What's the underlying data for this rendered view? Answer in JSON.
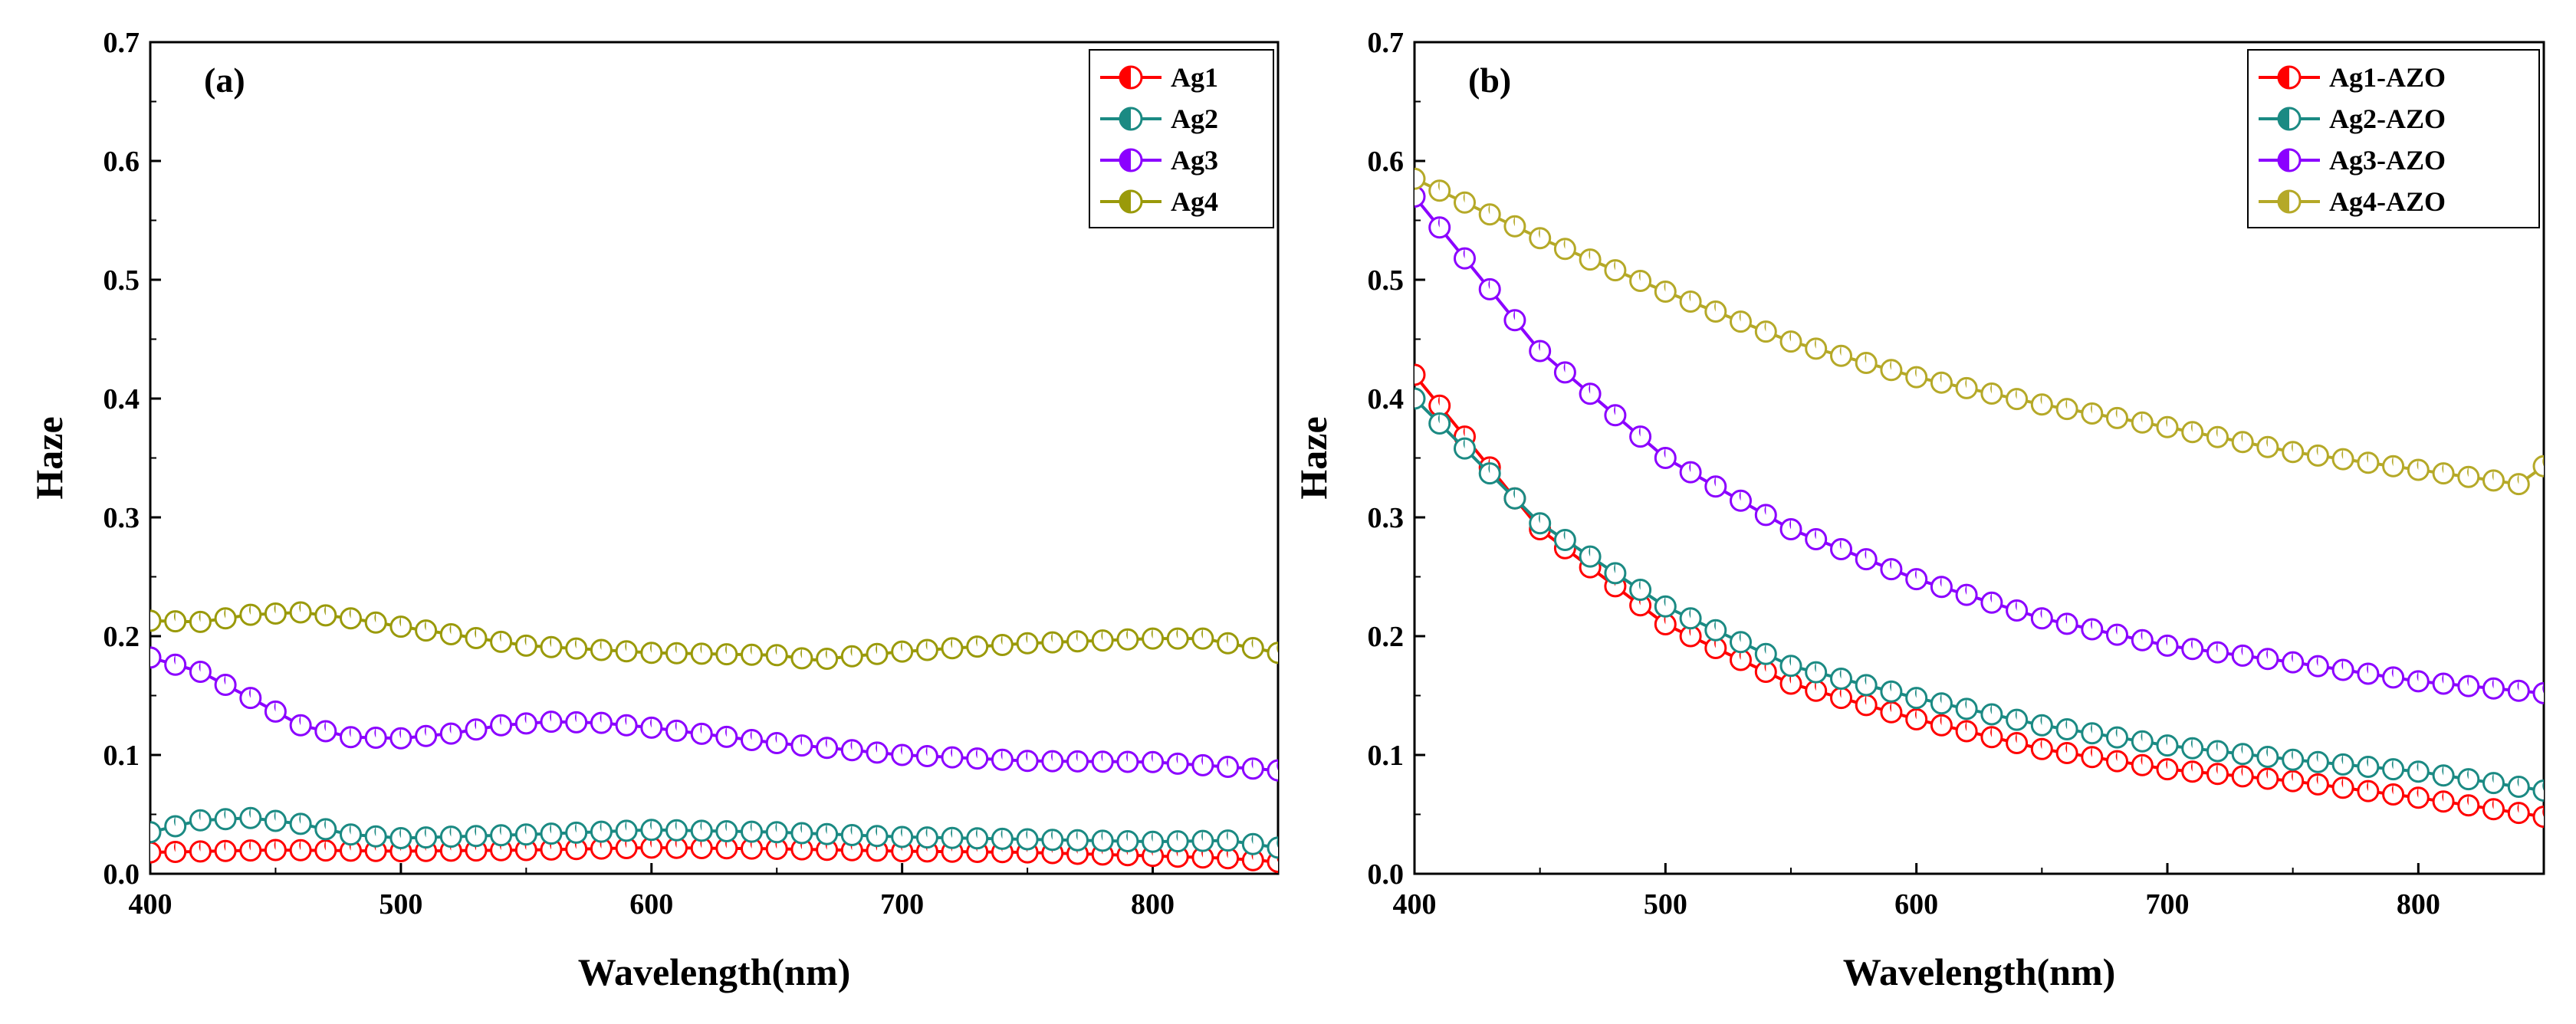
{
  "chart_data": [
    {
      "type": "line",
      "panel_label": "(a)",
      "xlabel": "Wavelength(nm)",
      "ylabel": "Haze",
      "xlim": [
        400,
        850
      ],
      "ylim": [
        0.0,
        0.7
      ],
      "x_ticks": [
        400,
        500,
        600,
        700,
        800
      ],
      "y_ticks": [
        "0.0",
        "0.1",
        "0.2",
        "0.3",
        "0.4",
        "0.5",
        "0.6",
        "0.7"
      ],
      "legend_position": "top-right",
      "series": [
        {
          "name": "Ag1",
          "color": "#ff0000",
          "x": [
            400,
            450,
            500,
            550,
            600,
            650,
            700,
            750,
            800,
            830,
            850
          ],
          "y": [
            0.018,
            0.02,
            0.019,
            0.02,
            0.022,
            0.021,
            0.019,
            0.018,
            0.015,
            0.013,
            0.01
          ]
        },
        {
          "name": "Ag2",
          "color": "#1b8a83",
          "x": [
            400,
            420,
            440,
            460,
            480,
            500,
            550,
            600,
            650,
            700,
            750,
            800,
            830,
            850
          ],
          "y": [
            0.035,
            0.045,
            0.047,
            0.042,
            0.033,
            0.03,
            0.033,
            0.037,
            0.035,
            0.031,
            0.029,
            0.027,
            0.028,
            0.022
          ]
        },
        {
          "name": "Ag3",
          "color": "#8b00ff",
          "x": [
            400,
            420,
            440,
            460,
            480,
            500,
            520,
            540,
            560,
            580,
            600,
            650,
            700,
            750,
            800,
            830,
            850
          ],
          "y": [
            0.182,
            0.17,
            0.148,
            0.125,
            0.115,
            0.114,
            0.118,
            0.125,
            0.128,
            0.127,
            0.123,
            0.11,
            0.1,
            0.095,
            0.094,
            0.09,
            0.087
          ]
        },
        {
          "name": "Ag4",
          "color": "#9a9a0a",
          "x": [
            400,
            420,
            440,
            460,
            480,
            500,
            550,
            600,
            650,
            665,
            700,
            750,
            800,
            820,
            850
          ],
          "y": [
            0.213,
            0.212,
            0.218,
            0.22,
            0.215,
            0.208,
            0.192,
            0.186,
            0.184,
            0.18,
            0.187,
            0.194,
            0.198,
            0.198,
            0.186
          ]
        }
      ]
    },
    {
      "type": "line",
      "panel_label": "(b)",
      "xlabel": "Wavelength(nm)",
      "ylabel": "Haze",
      "xlim": [
        400,
        850
      ],
      "ylim": [
        0.0,
        0.7
      ],
      "x_ticks": [
        400,
        500,
        600,
        700,
        800
      ],
      "y_ticks": [
        "0.0",
        "0.1",
        "0.2",
        "0.3",
        "0.4",
        "0.5",
        "0.6",
        "0.7"
      ],
      "legend_position": "top-right",
      "series": [
        {
          "name": "Ag1-AZO",
          "color": "#ff0000",
          "x": [
            400,
            450,
            500,
            550,
            600,
            650,
            700,
            750,
            800,
            850
          ],
          "y": [
            0.42,
            0.29,
            0.21,
            0.16,
            0.13,
            0.105,
            0.088,
            0.078,
            0.064,
            0.048
          ]
        },
        {
          "name": "Ag2-AZO",
          "color": "#1b8a83",
          "x": [
            400,
            450,
            500,
            550,
            600,
            650,
            700,
            750,
            800,
            850
          ],
          "y": [
            0.4,
            0.295,
            0.225,
            0.175,
            0.148,
            0.125,
            0.108,
            0.096,
            0.086,
            0.07
          ]
        },
        {
          "name": "Ag3-AZO",
          "color": "#8b00ff",
          "x": [
            400,
            450,
            500,
            550,
            600,
            650,
            700,
            750,
            800,
            850
          ],
          "y": [
            0.57,
            0.44,
            0.35,
            0.29,
            0.248,
            0.215,
            0.192,
            0.178,
            0.162,
            0.152
          ]
        },
        {
          "name": "Ag4-AZO",
          "color": "#b5a928",
          "x": [
            400,
            450,
            500,
            550,
            600,
            650,
            700,
            750,
            800,
            840,
            850
          ],
          "y": [
            0.585,
            0.535,
            0.49,
            0.448,
            0.418,
            0.395,
            0.376,
            0.355,
            0.34,
            0.328,
            0.343
          ]
        }
      ]
    }
  ]
}
